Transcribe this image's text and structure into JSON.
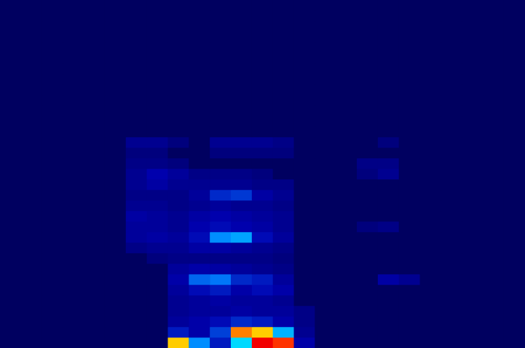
{
  "chart_data": {
    "type": "heatmap",
    "tick_labels": false,
    "grid": false,
    "zlim": [
      0,
      100
    ],
    "z": [
      [
        0,
        0,
        0,
        0,
        0,
        0,
        0,
        0,
        70,
        35,
        20,
        45,
        85,
        80,
        15,
        0,
        0,
        0,
        0,
        0,
        0,
        0,
        0,
        0,
        0
      ],
      [
        0,
        0,
        0,
        0,
        0,
        0,
        0,
        0,
        20,
        15,
        25,
        75,
        70,
        40,
        10,
        0,
        0,
        0,
        0,
        0,
        0,
        0,
        0,
        0,
        0
      ],
      [
        0,
        0,
        0,
        0,
        0,
        0,
        0,
        0,
        12,
        15,
        18,
        22,
        20,
        15,
        8,
        0,
        0,
        0,
        0,
        0,
        0,
        0,
        0,
        0,
        0
      ],
      [
        0,
        0,
        0,
        0,
        0,
        0,
        0,
        0,
        10,
        12,
        12,
        14,
        12,
        12,
        8,
        0,
        0,
        0,
        0,
        0,
        0,
        0,
        0,
        0,
        0
      ],
      [
        0,
        0,
        0,
        0,
        0,
        0,
        0,
        0,
        10,
        12,
        14,
        12,
        12,
        10,
        0,
        0,
        0,
        0,
        0,
        0,
        0,
        0,
        0,
        0,
        0
      ],
      [
        0,
        0,
        0,
        0,
        0,
        0,
        0,
        0,
        12,
        18,
        20,
        15,
        18,
        15,
        0,
        0,
        0,
        0,
        0,
        0,
        0,
        0,
        0,
        0,
        0
      ],
      [
        0,
        0,
        0,
        0,
        0,
        0,
        0,
        0,
        15,
        30,
        32,
        22,
        20,
        12,
        0,
        0,
        0,
        0,
        14,
        10,
        0,
        0,
        0,
        0,
        0
      ],
      [
        0,
        0,
        0,
        0,
        0,
        0,
        0,
        0,
        12,
        15,
        14,
        12,
        10,
        8,
        0,
        0,
        0,
        0,
        0,
        0,
        0,
        0,
        0,
        0,
        0
      ],
      [
        0,
        0,
        0,
        0,
        0,
        0,
        0,
        6,
        8,
        8,
        8,
        8,
        8,
        6,
        0,
        0,
        0,
        0,
        0,
        0,
        0,
        0,
        0,
        0,
        0
      ],
      [
        0,
        0,
        0,
        0,
        0,
        0,
        8,
        10,
        10,
        14,
        14,
        12,
        10,
        8,
        0,
        0,
        0,
        0,
        0,
        0,
        0,
        0,
        0,
        0,
        0
      ],
      [
        0,
        0,
        0,
        0,
        0,
        0,
        12,
        14,
        12,
        18,
        35,
        38,
        18,
        12,
        0,
        0,
        0,
        0,
        0,
        0,
        0,
        0,
        0,
        0,
        0
      ],
      [
        0,
        0,
        0,
        0,
        0,
        0,
        12,
        12,
        10,
        16,
        18,
        16,
        14,
        10,
        0,
        0,
        0,
        6,
        8,
        0,
        0,
        0,
        0,
        0,
        0
      ],
      [
        0,
        0,
        0,
        0,
        0,
        0,
        14,
        12,
        10,
        14,
        16,
        14,
        12,
        10,
        0,
        0,
        0,
        0,
        0,
        0,
        0,
        0,
        0,
        0,
        0
      ],
      [
        0,
        0,
        0,
        0,
        0,
        0,
        10,
        10,
        8,
        10,
        12,
        10,
        10,
        8,
        0,
        0,
        0,
        0,
        0,
        0,
        0,
        0,
        0,
        0,
        0
      ],
      [
        0,
        0,
        0,
        0,
        0,
        0,
        8,
        8,
        8,
        12,
        22,
        24,
        14,
        10,
        0,
        0,
        0,
        0,
        0,
        0,
        0,
        0,
        0,
        0,
        0
      ],
      [
        0,
        0,
        0,
        0,
        0,
        0,
        10,
        14,
        10,
        10,
        10,
        10,
        8,
        8,
        0,
        0,
        0,
        0,
        0,
        0,
        0,
        0,
        0,
        0,
        0
      ],
      [
        0,
        0,
        0,
        0,
        0,
        0,
        10,
        16,
        12,
        8,
        8,
        8,
        6,
        0,
        0,
        0,
        0,
        6,
        10,
        0,
        0,
        0,
        0,
        0,
        0
      ],
      [
        0,
        0,
        0,
        0,
        0,
        0,
        8,
        8,
        6,
        0,
        0,
        0,
        0,
        0,
        0,
        0,
        0,
        8,
        8,
        0,
        0,
        0,
        0,
        0,
        0
      ],
      [
        0,
        0,
        0,
        0,
        0,
        0,
        6,
        6,
        0,
        0,
        6,
        6,
        6,
        6,
        0,
        0,
        0,
        0,
        0,
        0,
        0,
        0,
        0,
        0,
        0
      ],
      [
        0,
        0,
        0,
        0,
        0,
        0,
        10,
        10,
        6,
        0,
        10,
        10,
        10,
        8,
        0,
        0,
        0,
        0,
        6,
        0,
        0,
        0,
        0,
        0,
        0
      ],
      [
        0,
        0,
        0,
        0,
        0,
        0,
        0,
        0,
        0,
        0,
        0,
        0,
        0,
        0,
        0,
        0,
        0,
        0,
        0,
        0,
        0,
        0,
        0,
        0,
        0
      ],
      [
        0,
        0,
        0,
        0,
        0,
        0,
        0,
        0,
        0,
        0,
        0,
        0,
        0,
        0,
        0,
        0,
        0,
        0,
        0,
        0,
        0,
        0,
        0,
        0,
        0
      ],
      [
        0,
        0,
        0,
        0,
        0,
        0,
        0,
        0,
        0,
        0,
        0,
        0,
        0,
        0,
        0,
        0,
        0,
        0,
        0,
        0,
        0,
        0,
        0,
        0,
        0
      ],
      [
        0,
        0,
        0,
        0,
        0,
        0,
        0,
        0,
        0,
        0,
        0,
        0,
        0,
        0,
        0,
        0,
        0,
        0,
        0,
        0,
        0,
        0,
        0,
        0,
        0
      ],
      [
        0,
        0,
        0,
        0,
        0,
        0,
        0,
        0,
        0,
        0,
        0,
        0,
        0,
        0,
        0,
        0,
        0,
        0,
        0,
        0,
        0,
        0,
        0,
        0,
        0
      ],
      [
        0,
        0,
        0,
        0,
        0,
        0,
        0,
        0,
        0,
        0,
        0,
        0,
        0,
        0,
        0,
        0,
        0,
        0,
        0,
        0,
        0,
        0,
        0,
        0,
        0
      ],
      [
        0,
        0,
        0,
        0,
        0,
        0,
        0,
        0,
        0,
        0,
        0,
        0,
        0,
        0,
        0,
        0,
        0,
        0,
        0,
        0,
        0,
        0,
        0,
        0,
        0
      ],
      [
        0,
        0,
        0,
        0,
        0,
        0,
        0,
        0,
        0,
        0,
        0,
        0,
        0,
        0,
        0,
        0,
        0,
        0,
        0,
        0,
        0,
        0,
        0,
        0,
        0
      ],
      [
        0,
        0,
        0,
        0,
        0,
        0,
        0,
        0,
        0,
        0,
        0,
        0,
        0,
        0,
        0,
        0,
        0,
        0,
        0,
        0,
        0,
        0,
        0,
        0,
        0
      ],
      [
        0,
        0,
        0,
        0,
        0,
        0,
        0,
        0,
        0,
        0,
        0,
        0,
        0,
        0,
        0,
        0,
        0,
        0,
        0,
        0,
        0,
        0,
        0,
        0,
        0
      ],
      [
        0,
        0,
        0,
        0,
        0,
        0,
        0,
        0,
        0,
        0,
        0,
        0,
        0,
        0,
        0,
        0,
        0,
        0,
        0,
        0,
        0,
        0,
        0,
        0,
        0
      ],
      [
        0,
        0,
        0,
        0,
        0,
        0,
        0,
        0,
        0,
        0,
        0,
        0,
        0,
        0,
        0,
        0,
        0,
        0,
        0,
        0,
        0,
        0,
        0,
        0,
        0
      ],
      [
        0,
        0,
        0,
        0,
        0,
        0,
        0,
        0,
        0,
        0,
        0,
        0,
        0,
        0,
        0,
        0,
        0,
        0,
        0,
        0,
        0,
        0,
        0,
        0,
        0
      ]
    ]
  }
}
